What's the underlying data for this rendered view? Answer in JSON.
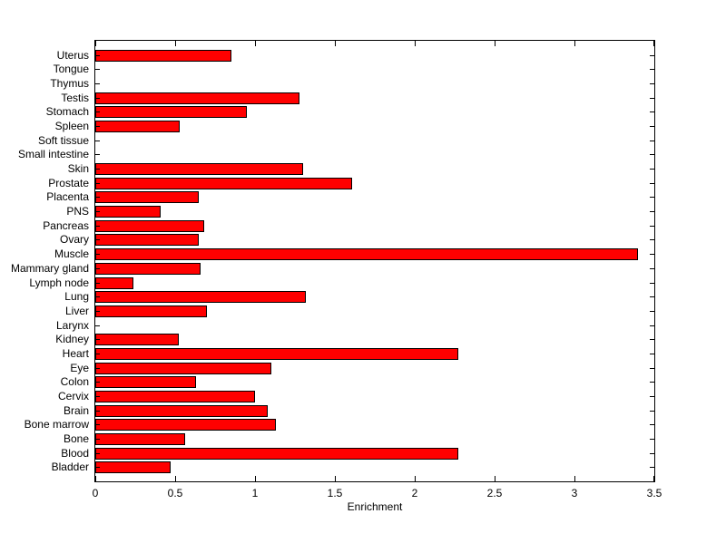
{
  "figure": {
    "background_color": "#ffffff",
    "axis_color": "#000000"
  },
  "chart_data": {
    "type": "bar",
    "orientation": "horizontal",
    "title": "",
    "xlabel": "Enrichment",
    "ylabel": "",
    "xlim": [
      0,
      3.5
    ],
    "xticks": [
      {
        "value": 0,
        "label": "0"
      },
      {
        "value": 0.5,
        "label": "0.5"
      },
      {
        "value": 1,
        "label": "1"
      },
      {
        "value": 1.5,
        "label": "1.5"
      },
      {
        "value": 2,
        "label": "2"
      },
      {
        "value": 2.5,
        "label": "2.5"
      },
      {
        "value": 3,
        "label": "3"
      },
      {
        "value": 3.5,
        "label": "3.5"
      }
    ],
    "grid": false,
    "legend": null,
    "bar_color": "#ff0000",
    "bar_edge_color": "#000000",
    "categories": [
      "Uterus",
      "Tongue",
      "Thymus",
      "Testis",
      "Stomach",
      "Spleen",
      "Soft tissue",
      "Small intestine",
      "Skin",
      "Prostate",
      "Placenta",
      "PNS",
      "Pancreas",
      "Ovary",
      "Muscle",
      "Mammary gland",
      "Lymph node",
      "Lung",
      "Liver",
      "Larynx",
      "Kidney",
      "Heart",
      "Eye",
      "Colon",
      "Cervix",
      "Brain",
      "Bone marrow",
      "Bone",
      "Blood",
      "Bladder"
    ],
    "values": [
      0.85,
      0,
      0,
      1.28,
      0.95,
      0.53,
      0,
      0,
      1.3,
      1.61,
      0.65,
      0.41,
      0.68,
      0.65,
      3.4,
      0.66,
      0.24,
      1.32,
      0.7,
      0,
      0.52,
      2.27,
      1.1,
      0.63,
      1.0,
      1.08,
      1.13,
      0.56,
      2.27,
      0.47
    ]
  }
}
